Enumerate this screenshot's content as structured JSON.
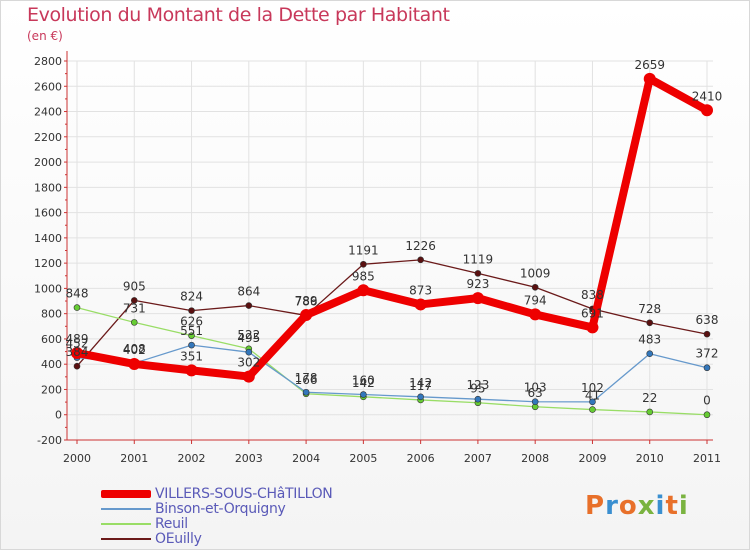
{
  "title": "Evolution du Montant de la Dette par Habitant",
  "unit": "(en €)",
  "logo": {
    "text": "Proxiti",
    "colors": [
      "#e8702a",
      "#3a8fd0",
      "#e8702a",
      "#7ab340",
      "#3a8fd0",
      "#e8702a",
      "#7ab340"
    ]
  },
  "chart_data": {
    "type": "line",
    "x": [
      "2000",
      "2001",
      "2002",
      "2003",
      "2004",
      "2005",
      "2006",
      "2007",
      "2008",
      "2009",
      "2010",
      "2011"
    ],
    "ylim": [
      -200,
      2800
    ],
    "yticks": [
      -200,
      0,
      200,
      400,
      600,
      800,
      1000,
      1200,
      1400,
      1600,
      1800,
      2000,
      2200,
      2400,
      2600,
      2800
    ],
    "grid": true,
    "legend_position": "bottom-left",
    "series": [
      {
        "name": "OEuilly",
        "color": "#6b1a1a",
        "marker": "#5a1010",
        "width": 1.3,
        "values": [
          384,
          905,
          824,
          864,
          786,
          1191,
          1226,
          1119,
          1009,
          838,
          728,
          638
        ],
        "labels": [
          "384",
          "905",
          "824",
          "864",
          "786",
          "1191",
          "1226",
          "1119",
          "1009",
          "838",
          "728",
          "638"
        ]
      },
      {
        "name": "Reuil",
        "color": "#99dd66",
        "marker": "#66cc33",
        "width": 1.3,
        "values": [
          848,
          731,
          626,
          522,
          166,
          142,
          117,
          95,
          63,
          41,
          22,
          0
        ],
        "labels": [
          "848",
          "731",
          "626",
          "522",
          "166",
          "142",
          "117",
          "95",
          "63",
          "41",
          "22",
          "0"
        ]
      },
      {
        "name": "Binson-et-Orquigny",
        "color": "#6699cc",
        "marker": "#3377bb",
        "width": 1.3,
        "values": [
          452,
          408,
          551,
          495,
          178,
          160,
          142,
          123,
          103,
          102,
          483,
          372
        ],
        "labels": [
          "452",
          "408",
          "551",
          "495",
          "178",
          "160",
          "142",
          "123",
          "103",
          "102",
          "483",
          "372"
        ]
      },
      {
        "name": "VILLERS-SOUS-CHâTILLON",
        "color": "#ee0000",
        "marker": "#ee0000",
        "width": 8,
        "values": [
          489,
          402,
          351,
          302,
          789,
          985,
          873,
          923,
          794,
          691,
          2659,
          2410
        ],
        "labels": [
          "489",
          "402",
          "351",
          "302",
          "789",
          "985",
          "873",
          "923",
          "794",
          "691",
          "2659",
          "2410"
        ]
      }
    ]
  }
}
